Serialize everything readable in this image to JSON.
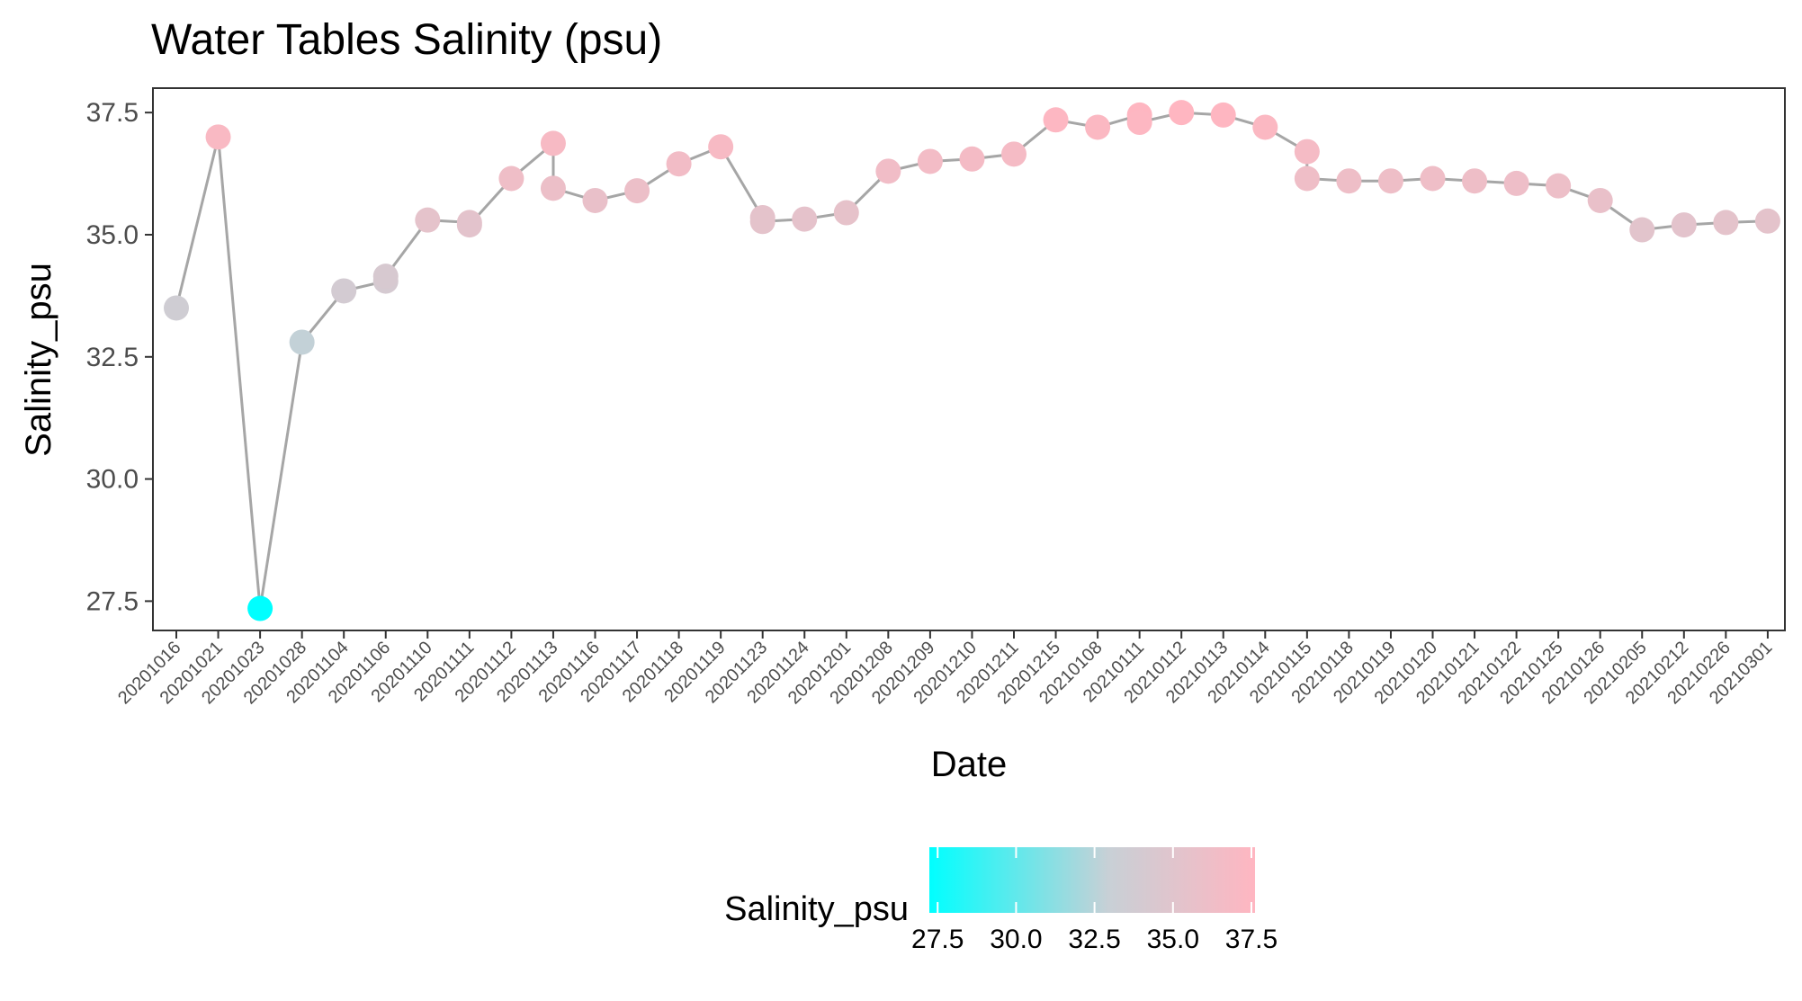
{
  "chart_data": {
    "type": "line",
    "title": "Water Tables Salinity (psu)",
    "xlabel": "Date",
    "ylabel": "Salinity_psu",
    "ylim": [
      26.9,
      38.0
    ],
    "yticks": [
      27.5,
      30.0,
      32.5,
      35.0,
      37.5
    ],
    "ytick_labels": [
      "27.5",
      "30.0",
      "32.5",
      "35.0",
      "37.5"
    ],
    "categories": [
      "20201016",
      "20201021",
      "20201023",
      "20201028",
      "20201104",
      "20201106",
      "20201110",
      "20201111",
      "20201112",
      "20201113",
      "20201116",
      "20201117",
      "20201118",
      "20201119",
      "20201123",
      "20201124",
      "20201201",
      "20201208",
      "20201209",
      "20201210",
      "20201211",
      "20201215",
      "20210108",
      "20210111",
      "20210112",
      "20210113",
      "20210114",
      "20210115",
      "20210118",
      "20210119",
      "20210120",
      "20210121",
      "20210122",
      "20210125",
      "20210126",
      "20210205",
      "20210212",
      "20210226",
      "20210301"
    ],
    "points": [
      {
        "x": "20201016",
        "y": 33.5
      },
      {
        "x": "20201021",
        "y": 37.0
      },
      {
        "x": "20201023",
        "y": 27.35
      },
      {
        "x": "20201028",
        "y": 32.8
      },
      {
        "x": "20201104",
        "y": 33.85
      },
      {
        "x": "20201106",
        "y": 34.05
      },
      {
        "x": "20201106",
        "y": 34.15
      },
      {
        "x": "20201110",
        "y": 35.3
      },
      {
        "x": "20201111",
        "y": 35.25
      },
      {
        "x": "20201111",
        "y": 35.2
      },
      {
        "x": "20201112",
        "y": 36.15
      },
      {
        "x": "20201113",
        "y": 36.87
      },
      {
        "x": "20201113",
        "y": 35.95
      },
      {
        "x": "20201116",
        "y": 35.7
      },
      {
        "x": "20201117",
        "y": 35.9
      },
      {
        "x": "20201118",
        "y": 36.45
      },
      {
        "x": "20201119",
        "y": 36.8
      },
      {
        "x": "20201123",
        "y": 35.35
      },
      {
        "x": "20201123",
        "y": 35.27
      },
      {
        "x": "20201124",
        "y": 35.32
      },
      {
        "x": "20201201",
        "y": 35.45
      },
      {
        "x": "20201208",
        "y": 36.3
      },
      {
        "x": "20201209",
        "y": 36.5
      },
      {
        "x": "20201210",
        "y": 36.55
      },
      {
        "x": "20201211",
        "y": 36.65
      },
      {
        "x": "20201215",
        "y": 37.35
      },
      {
        "x": "20210108",
        "y": 37.2
      },
      {
        "x": "20210111",
        "y": 37.45
      },
      {
        "x": "20210111",
        "y": 37.3
      },
      {
        "x": "20210112",
        "y": 37.5
      },
      {
        "x": "20210113",
        "y": 37.45
      },
      {
        "x": "20210114",
        "y": 37.2
      },
      {
        "x": "20210115",
        "y": 36.7
      },
      {
        "x": "20210115",
        "y": 36.15
      },
      {
        "x": "20210118",
        "y": 36.1
      },
      {
        "x": "20210119",
        "y": 36.1
      },
      {
        "x": "20210120",
        "y": 36.15
      },
      {
        "x": "20210121",
        "y": 36.1
      },
      {
        "x": "20210122",
        "y": 36.05
      },
      {
        "x": "20210125",
        "y": 36.0
      },
      {
        "x": "20210126",
        "y": 35.7
      },
      {
        "x": "20210205",
        "y": 35.1
      },
      {
        "x": "20210212",
        "y": 35.2
      },
      {
        "x": "20210226",
        "y": 35.25
      },
      {
        "x": "20210301",
        "y": 35.28
      }
    ],
    "line_color": "#a6a6a6",
    "color_scale": {
      "low": "#00ffff",
      "mid": "#c8d0d6",
      "high": "#ffb6c1",
      "min": 27.35,
      "max": 37.5
    },
    "legend": {
      "title": "Salinity_psu",
      "position": "bottom",
      "ticks": [
        27.5,
        30.0,
        32.5,
        35.0,
        37.5
      ],
      "tick_labels": [
        "27.5",
        "30.0",
        "32.5",
        "35.0",
        "37.5"
      ]
    },
    "grid": false
  }
}
